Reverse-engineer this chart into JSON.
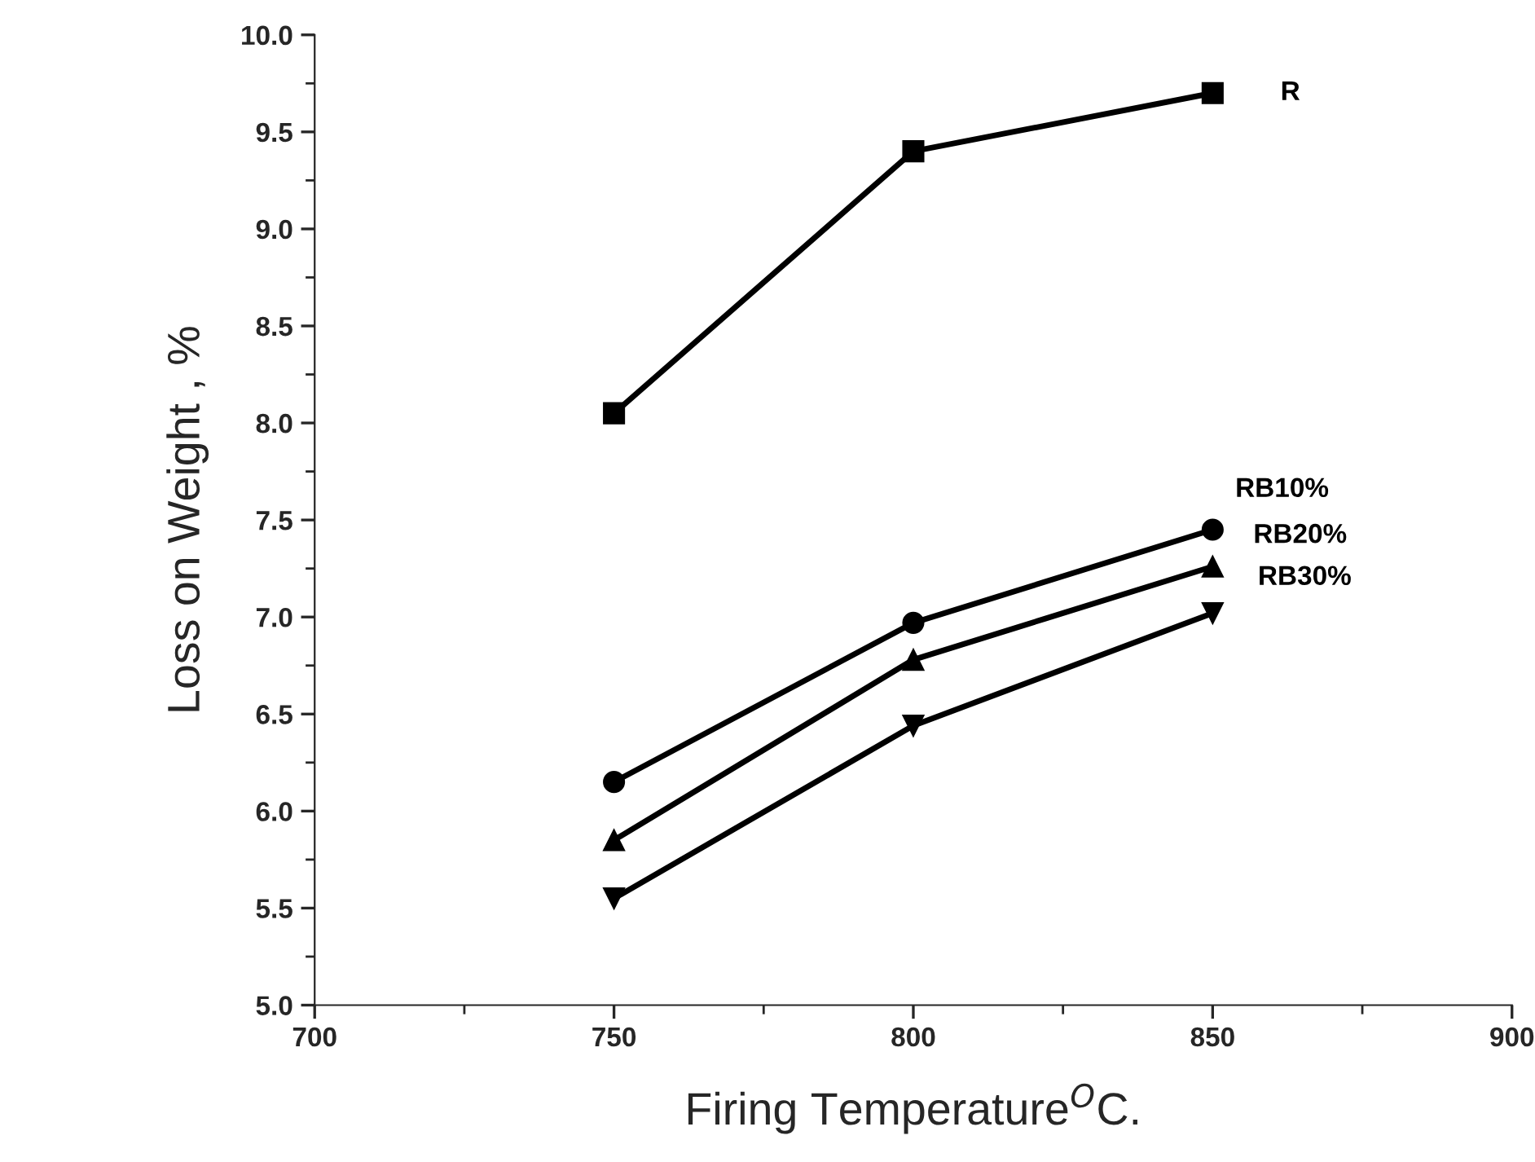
{
  "chart_data": {
    "type": "line",
    "xlabel": "Firing Temperature$^{O}$C.",
    "ylabel": "Loss on Weight , %",
    "x": [
      750,
      800,
      850
    ],
    "series": [
      {
        "name": "R",
        "color": "#000000",
        "marker": "square",
        "values": [
          8.05,
          9.4,
          9.7
        ]
      },
      {
        "name": "RB10%",
        "color": "#000000",
        "marker": "circle",
        "values": [
          6.15,
          6.97,
          7.45
        ]
      },
      {
        "name": "RB20%",
        "color": "#000000",
        "marker": "triangle",
        "values": [
          5.85,
          6.78,
          7.26
        ]
      },
      {
        "name": "RB30%",
        "color": "#000000",
        "marker": "triangle_down",
        "values": [
          5.55,
          6.44,
          7.02
        ]
      }
    ],
    "xlim": [
      700,
      900
    ],
    "xticks": [
      700,
      750,
      800,
      850,
      900
    ],
    "ylim": [
      5.0,
      10.0
    ],
    "yticks": [
      {
        "value": 5.0,
        "label": "5.0"
      },
      {
        "value": 5.5,
        "label": "5.5"
      },
      {
        "value": 6.0,
        "label": "6.0"
      },
      {
        "value": 6.5,
        "label": "6.5"
      },
      {
        "value": 7.0,
        "label": "7.0"
      },
      {
        "value": 7.5,
        "label": "7.5"
      },
      {
        "value": 8.0,
        "label": "8.0"
      },
      {
        "value": 8.5,
        "label": "8.5"
      },
      {
        "value": 9.0,
        "label": "9.0"
      },
      {
        "value": 9.5,
        "label": "9.5"
      },
      {
        "value": 10.0,
        "label": "10.0"
      }
    ],
    "line_style": "solid",
    "grid": false,
    "legend": false
  }
}
